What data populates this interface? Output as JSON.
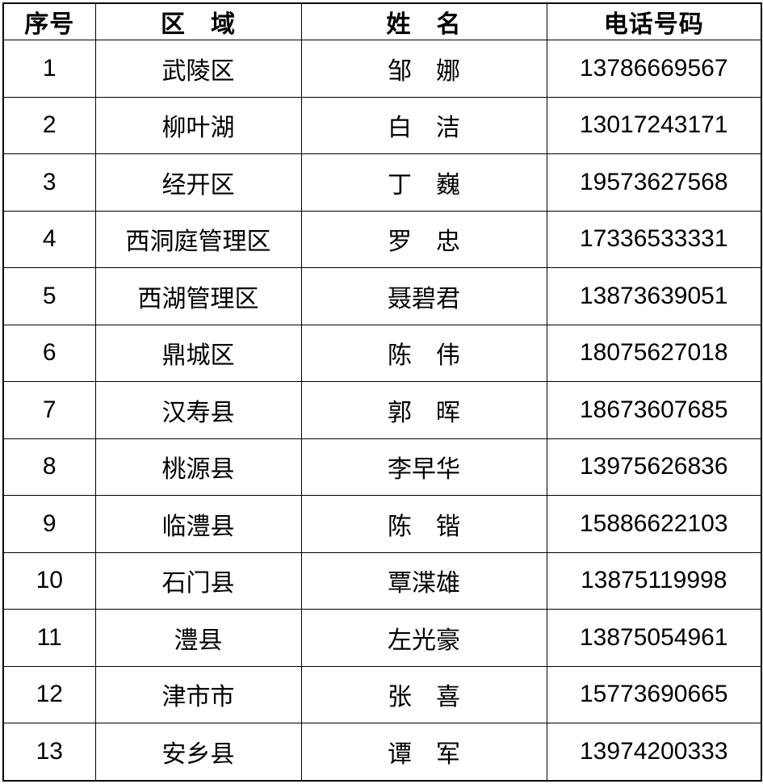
{
  "table": {
    "columns": [
      {
        "key": "no",
        "label": "序号"
      },
      {
        "key": "region",
        "label": "区　域"
      },
      {
        "key": "name",
        "label": "姓　名"
      },
      {
        "key": "phone",
        "label": "电话号码"
      }
    ],
    "rows": [
      {
        "no": "1",
        "region": "武陵区",
        "name": "邹　娜",
        "phone": "13786669567"
      },
      {
        "no": "2",
        "region": "柳叶湖",
        "name": "白　洁",
        "phone": "13017243171"
      },
      {
        "no": "3",
        "region": "经开区",
        "name": "丁　巍",
        "phone": "19573627568"
      },
      {
        "no": "4",
        "region": "西洞庭管理区",
        "name": "罗　忠",
        "phone": "17336533331"
      },
      {
        "no": "5",
        "region": "西湖管理区",
        "name": "聂碧君",
        "phone": "13873639051"
      },
      {
        "no": "6",
        "region": "鼎城区",
        "name": "陈　伟",
        "phone": "18075627018"
      },
      {
        "no": "7",
        "region": "汉寿县",
        "name": "郭　晖",
        "phone": "18673607685"
      },
      {
        "no": "8",
        "region": "桃源县",
        "name": "李早华",
        "phone": "13975626836"
      },
      {
        "no": "9",
        "region": "临澧县",
        "name": "陈　锴",
        "phone": "15886622103"
      },
      {
        "no": "10",
        "region": "石门县",
        "name": "覃渫雄",
        "phone": "13875119998"
      },
      {
        "no": "11",
        "region": "澧县",
        "name": "左光豪",
        "phone": "13875054961"
      },
      {
        "no": "12",
        "region": "津市市",
        "name": "张　喜",
        "phone": "15773690665"
      },
      {
        "no": "13",
        "region": "安乡县",
        "name": "谭　军",
        "phone": "13974200333"
      }
    ],
    "colors": {
      "border": "#000000",
      "text": "#000000",
      "background": "#ffffff"
    }
  }
}
